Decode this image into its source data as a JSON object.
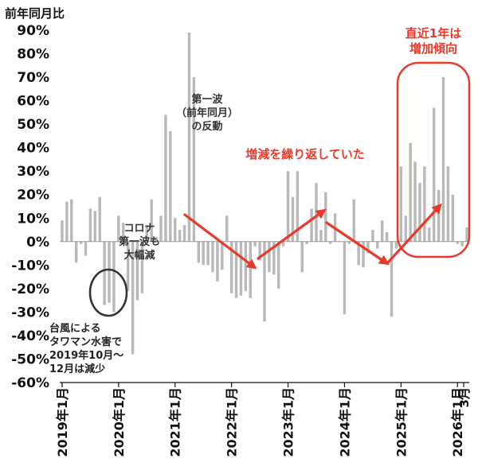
{
  "chart_data": {
    "type": "bar",
    "ylabel": "前年同月比",
    "ylim": [
      -60,
      90
    ],
    "yticks": [
      "90%",
      "80%",
      "70%",
      "60%",
      "50%",
      "40%",
      "30%",
      "20%",
      "10%",
      "0%",
      "-10%",
      "-20%",
      "-30%",
      "-40%",
      "-50%",
      "-60%"
    ],
    "xticks": [
      "2019年1月",
      "2020年1月",
      "2021年1月",
      "2022年1月",
      "2023年1月",
      "2024年1月",
      "2025年1月",
      "2026年1月",
      "3月"
    ],
    "grid": false,
    "bar_color": "#b9b9b9",
    "start": "2019-01",
    "end": "2026-03",
    "values": [
      9,
      17,
      18,
      -9,
      -1,
      -6,
      14,
      13,
      19,
      -27,
      -26,
      -30,
      11,
      8,
      -21,
      -48,
      -25,
      -22,
      7,
      18,
      2,
      11,
      54,
      47,
      10,
      5,
      7,
      89,
      70,
      -9,
      -10,
      -10,
      -13,
      -17,
      -12,
      11,
      -22,
      -24,
      -23,
      -21,
      -24,
      -2,
      -8,
      -34,
      -13,
      -14,
      -20,
      -2,
      30,
      19,
      30,
      -13,
      -1,
      14,
      25,
      5,
      21,
      -1,
      12,
      0,
      -31,
      -1,
      18,
      -10,
      -11,
      -5,
      5,
      -3,
      9,
      4,
      -32,
      -3,
      32,
      11,
      42,
      34,
      25,
      32,
      6,
      57,
      22,
      70,
      32,
      20,
      -1,
      -2,
      6
    ]
  },
  "annotations": {
    "typhoon": [
      "台風による",
      "タワマン水害で",
      "2019年10月〜",
      "12月は減少"
    ],
    "corona": [
      "コロナ",
      "第一波も",
      "大幅減"
    ],
    "rebound": [
      "第一波",
      "（前年同月）",
      "の反動"
    ],
    "repeat": "増減を繰り返していた",
    "recent": [
      "直近1年は",
      "増加傾向"
    ]
  },
  "colors": {
    "accent_red": "#e8392a",
    "circle_dark": "#333333",
    "axis": "#111111"
  }
}
